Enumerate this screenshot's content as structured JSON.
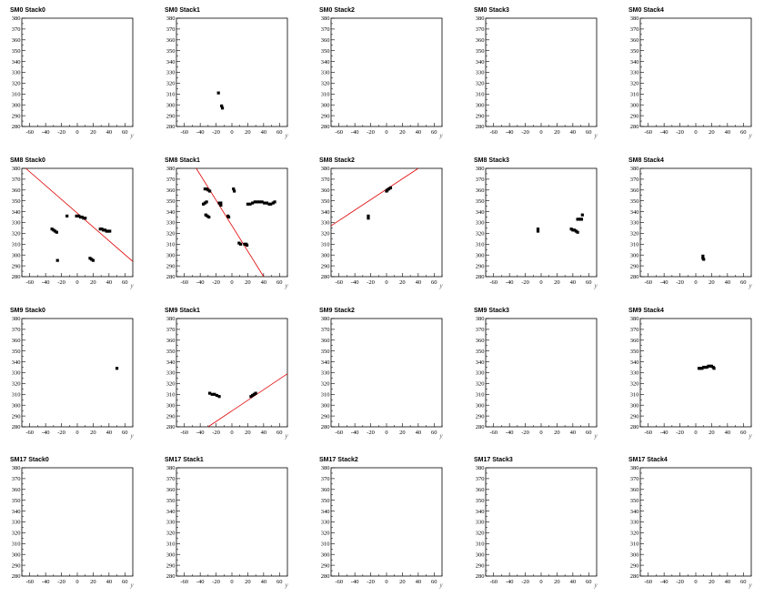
{
  "chart_data": {
    "type": "scatter",
    "xlabel": "y",
    "xlim": [
      -70,
      70
    ],
    "ylim": [
      280,
      380
    ],
    "xticks": [
      -60,
      -40,
      -20,
      0,
      20,
      40,
      60
    ],
    "yticks": [
      280,
      290,
      300,
      310,
      320,
      330,
      340,
      350,
      360,
      370,
      380
    ],
    "fit_line_color": "#e00000",
    "point_color": "#000000",
    "panels": [
      {
        "title": "SM0 Stack0",
        "points": [],
        "fit": null
      },
      {
        "title": "SM0 Stack1",
        "points": [
          [
            -17,
            311
          ],
          [
            -13,
            299
          ],
          [
            -12,
            297
          ]
        ],
        "fit": null
      },
      {
        "title": "SM0 Stack2",
        "points": [],
        "fit": null
      },
      {
        "title": "SM0 Stack3",
        "points": [],
        "fit": null
      },
      {
        "title": "SM0 Stack4",
        "points": [],
        "fit": null
      },
      {
        "title": "SM8 Stack0",
        "points": [
          [
            -32,
            324
          ],
          [
            -30,
            323
          ],
          [
            -28,
            322
          ],
          [
            -26,
            321
          ],
          [
            -13,
            336
          ],
          [
            -25,
            295
          ],
          [
            -1,
            336
          ],
          [
            2,
            336
          ],
          [
            4,
            335
          ],
          [
            6,
            335
          ],
          [
            8,
            334
          ],
          [
            10,
            334
          ],
          [
            16,
            297
          ],
          [
            18,
            296
          ],
          [
            20,
            295
          ],
          [
            29,
            324
          ],
          [
            31,
            324
          ],
          [
            33,
            323
          ],
          [
            35,
            323
          ],
          [
            37,
            322
          ],
          [
            39,
            322
          ],
          [
            41,
            322
          ]
        ],
        "fit": [
          [
            -65,
            380
          ],
          [
            70,
            294
          ]
        ]
      },
      {
        "title": "SM8 Stack1",
        "points": [
          [
            -36,
            347
          ],
          [
            -34,
            348
          ],
          [
            -32,
            349
          ],
          [
            -33,
            337
          ],
          [
            -31,
            336
          ],
          [
            -29,
            335
          ],
          [
            -34,
            361
          ],
          [
            -32,
            361
          ],
          [
            -30,
            360
          ],
          [
            -28,
            359
          ],
          [
            -16,
            348
          ],
          [
            -14,
            348
          ],
          [
            -14,
            346
          ],
          [
            -5,
            336
          ],
          [
            -4,
            335
          ],
          [
            2,
            361
          ],
          [
            3,
            359
          ],
          [
            9,
            311
          ],
          [
            11,
            310
          ],
          [
            16,
            310
          ],
          [
            18,
            310
          ],
          [
            19,
            309
          ],
          [
            20,
            347
          ],
          [
            23,
            347
          ],
          [
            26,
            348
          ],
          [
            29,
            349
          ],
          [
            32,
            349
          ],
          [
            35,
            349
          ],
          [
            38,
            349
          ],
          [
            41,
            348
          ],
          [
            44,
            348
          ],
          [
            47,
            347
          ],
          [
            49,
            347
          ],
          [
            52,
            348
          ],
          [
            54,
            349
          ]
        ],
        "fit": [
          [
            -45,
            380
          ],
          [
            40,
            280
          ]
        ]
      },
      {
        "title": "SM8 Stack2",
        "points": [
          [
            -23,
            336
          ],
          [
            -23,
            334
          ],
          [
            0,
            359
          ],
          [
            1,
            360
          ],
          [
            3,
            361
          ],
          [
            5,
            362
          ]
        ],
        "fit": [
          [
            -70,
            327
          ],
          [
            40,
            380
          ]
        ]
      },
      {
        "title": "SM8 Stack3",
        "points": [
          [
            -4,
            324
          ],
          [
            -4,
            322
          ],
          [
            38,
            324
          ],
          [
            40,
            323
          ],
          [
            42,
            323
          ],
          [
            44,
            322
          ],
          [
            46,
            321
          ],
          [
            46,
            333
          ],
          [
            48,
            333
          ],
          [
            50,
            333
          ],
          [
            51,
            333
          ],
          [
            52,
            337
          ]
        ],
        "fit": null
      },
      {
        "title": "SM8 Stack4",
        "points": [
          [
            9,
            299
          ],
          [
            9,
            297
          ],
          [
            10,
            296
          ]
        ],
        "fit": null
      },
      {
        "title": "SM9 Stack0",
        "points": [
          [
            50,
            334
          ]
        ],
        "fit": null
      },
      {
        "title": "SM9 Stack1",
        "points": [
          [
            -28,
            311
          ],
          [
            -25,
            310
          ],
          [
            -22,
            310
          ],
          [
            -19,
            309
          ],
          [
            -16,
            308
          ],
          [
            24,
            308
          ],
          [
            26,
            309
          ],
          [
            28,
            310
          ],
          [
            30,
            311
          ]
        ],
        "fit": [
          [
            -30,
            280
          ],
          [
            70,
            329
          ]
        ]
      },
      {
        "title": "SM9 Stack2",
        "points": [],
        "fit": null
      },
      {
        "title": "SM9 Stack3",
        "points": [],
        "fit": null
      },
      {
        "title": "SM9 Stack4",
        "points": [
          [
            4,
            334
          ],
          [
            6,
            334
          ],
          [
            8,
            334
          ],
          [
            10,
            335
          ],
          [
            12,
            335
          ],
          [
            14,
            335
          ],
          [
            16,
            336
          ],
          [
            18,
            336
          ],
          [
            20,
            336
          ],
          [
            22,
            335
          ],
          [
            23,
            334
          ]
        ],
        "fit": null
      },
      {
        "title": "SM17 Stack0",
        "points": [],
        "fit": null
      },
      {
        "title": "SM17 Stack1",
        "points": [],
        "fit": null
      },
      {
        "title": "SM17 Stack2",
        "points": [],
        "fit": null
      },
      {
        "title": "SM17 Stack3",
        "points": [],
        "fit": null
      },
      {
        "title": "SM17 Stack4",
        "points": [],
        "fit": null
      }
    ]
  }
}
